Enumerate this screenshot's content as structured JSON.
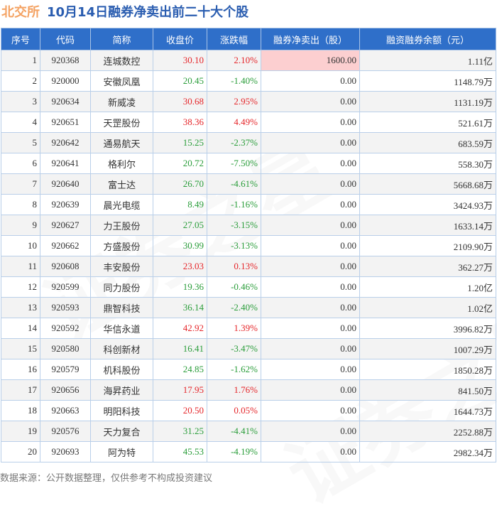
{
  "title": {
    "exchange": "北交所",
    "main": "10月14日融券净卖出前二十大个股"
  },
  "colors": {
    "up": "#e5262a",
    "down": "#2a9d3a",
    "header": "#2f6fc9",
    "highlight": "#fccfd0"
  },
  "table": {
    "headers": [
      "序号",
      "代码",
      "简称",
      "收盘价",
      "涨跌幅",
      "融券净卖出（股）",
      "融资融券余额（元）"
    ],
    "rows": [
      [
        "1",
        "920368",
        "连城数控",
        "30.10",
        "2.10%",
        "1600.00",
        "1.11亿"
      ],
      [
        "2",
        "920000",
        "安徽凤凰",
        "20.45",
        "-1.40%",
        "0.00",
        "1148.79万"
      ],
      [
        "3",
        "920634",
        "新威凌",
        "30.68",
        "2.95%",
        "0.00",
        "1131.19万"
      ],
      [
        "4",
        "920651",
        "天罡股份",
        "38.36",
        "4.49%",
        "0.00",
        "521.61万"
      ],
      [
        "5",
        "920642",
        "通易航天",
        "15.25",
        "-2.37%",
        "0.00",
        "683.59万"
      ],
      [
        "6",
        "920641",
        "格利尔",
        "20.72",
        "-7.50%",
        "0.00",
        "558.30万"
      ],
      [
        "7",
        "920640",
        "富士达",
        "26.70",
        "-4.61%",
        "0.00",
        "5668.68万"
      ],
      [
        "8",
        "920639",
        "晨光电缆",
        "8.49",
        "-1.16%",
        "0.00",
        "3424.93万"
      ],
      [
        "9",
        "920627",
        "力王股份",
        "27.05",
        "-3.15%",
        "0.00",
        "1633.14万"
      ],
      [
        "10",
        "920662",
        "方盛股份",
        "30.99",
        "-3.13%",
        "0.00",
        "2109.90万"
      ],
      [
        "11",
        "920608",
        "丰安股份",
        "23.03",
        "0.13%",
        "0.00",
        "362.27万"
      ],
      [
        "12",
        "920599",
        "同力股份",
        "19.36",
        "-0.46%",
        "0.00",
        "1.20亿"
      ],
      [
        "13",
        "920593",
        "鼎智科技",
        "36.14",
        "-2.40%",
        "0.00",
        "1.02亿"
      ],
      [
        "14",
        "920592",
        "华信永道",
        "42.92",
        "1.39%",
        "0.00",
        "3996.82万"
      ],
      [
        "15",
        "920580",
        "科创新材",
        "16.41",
        "-3.47%",
        "0.00",
        "1007.29万"
      ],
      [
        "16",
        "920579",
        "机科股份",
        "24.85",
        "-1.62%",
        "0.00",
        "1850.28万"
      ],
      [
        "17",
        "920656",
        "海昇药业",
        "17.95",
        "1.76%",
        "0.00",
        "841.50万"
      ],
      [
        "18",
        "920663",
        "明阳科技",
        "20.50",
        "0.05%",
        "0.00",
        "1644.73万"
      ],
      [
        "19",
        "920576",
        "天力复合",
        "31.25",
        "-4.41%",
        "0.00",
        "2252.88万"
      ],
      [
        "20",
        "920693",
        "阿为特",
        "45.53",
        "-4.19%",
        "0.00",
        "2982.34万"
      ]
    ]
  },
  "footer": "数据来源：公开数据整理，仅供参考不构成投资建议",
  "watermark": "证券之星"
}
